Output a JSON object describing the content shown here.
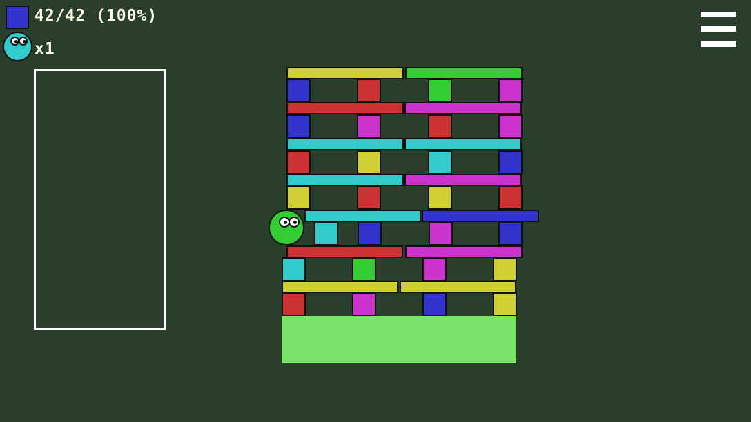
{
  "hud": {
    "block_counter": "42/42 (100%)",
    "block_icon_color": "#3333cc",
    "lives": "x1",
    "lives_icon_color": "#33cccc"
  },
  "menu": {
    "icon": "hamburger-menu-icon"
  },
  "player": {
    "color": "#33cc33"
  },
  "ground_color": "#7be36a",
  "palette": {
    "yellow": "#cfcf33",
    "green": "#33cc33",
    "blue": "#3333cc",
    "red": "#cc3333",
    "magenta": "#cc33cc",
    "cyan": "#33cccc"
  },
  "blocks": [
    "yellow",
    "green",
    "blue",
    "red",
    "green",
    "magenta",
    "red",
    "magenta",
    "blue",
    "magenta",
    "red",
    "magenta",
    "cyan",
    "cyan",
    "red",
    "yellow",
    "cyan",
    "blue",
    "cyan",
    "magenta",
    "yellow",
    "red",
    "yellow",
    "red",
    "cyan",
    "blue",
    "cyan",
    "blue",
    "magenta",
    "blue",
    "red",
    "magenta",
    "cyan",
    "green",
    "magenta",
    "yellow",
    "yellow",
    "yellow",
    "red",
    "magenta",
    "blue",
    "yellow"
  ]
}
